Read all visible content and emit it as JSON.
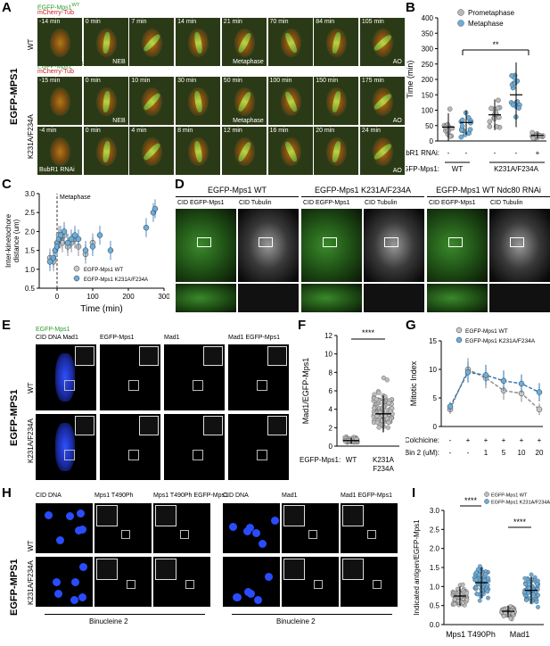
{
  "panels": {
    "A": {
      "label": "A",
      "side_label": "EGFP-MPS1",
      "wt": {
        "row_label": "WT",
        "legend_line1": "EGFP-Mps1",
        "legend_line1_sup": "WT",
        "legend_line2": "mCherry-Tub",
        "times": [
          "-14 min",
          "0 min",
          "7 min",
          "14 min",
          "21 min",
          "70 min",
          "84 min",
          "105 min"
        ],
        "tags": [
          "",
          "NEB",
          "",
          "",
          "Metaphase",
          "",
          "",
          "AO"
        ]
      },
      "mut": {
        "row_label": "K231A/F234A",
        "legend_line1": "EGFP-Mps1",
        "legend_line1_sup": "K231A/F234A",
        "legend_line2": "mCherry-Tub",
        "times": [
          "-15 min",
          "0 min",
          "10 min",
          "30 min",
          "50 min",
          "100 min",
          "150 min",
          "175 min"
        ],
        "tags": [
          "",
          "NEB",
          "",
          "",
          "Metaphase",
          "",
          "",
          "AO"
        ]
      },
      "rnai": {
        "times": [
          "-4 min",
          "0 min",
          "4 min",
          "8 min",
          "12 min",
          "16 min",
          "20 min",
          "24 min"
        ],
        "tags": [
          "",
          "",
          "",
          "",
          "",
          "",
          "",
          "AO"
        ],
        "row_note": "BubR1 RNAi"
      }
    },
    "B": {
      "label": "B",
      "ylabel": "Time (min)",
      "legend": [
        "Prometaphase",
        "Metaphase"
      ],
      "significance": "**",
      "row1_label": "BubR1 RNAi:",
      "row1_values": [
        "-",
        "-",
        "-",
        "-",
        "+"
      ],
      "row2_label": "EGFP-Mps1:",
      "row2_groups": [
        "WT",
        "K231A/F234A"
      ],
      "colors": {
        "prometaphase": "#b8b8b8",
        "metaphase": "#6aaedc"
      }
    },
    "C": {
      "label": "C",
      "ylabel_line1": "Inter-kinetochore",
      "ylabel_line2": "distance (um)",
      "xlabel": "Time (min)",
      "annotation": "Metaphase",
      "legend": [
        "EGFP-Mps1 WT",
        "EGFP-Mps1 K231A/F234A"
      ]
    },
    "D": {
      "label": "D",
      "headers": [
        "EGFP-Mps1 WT",
        "EGFP-Mps1 K231A/F234A",
        "EGFP-Mps1 WT Ndc80 RNAi"
      ],
      "sub1": "CID EGFP-Mps1",
      "sub2": "CID Tubulin"
    },
    "E": {
      "label": "E",
      "side_label": "EGFP-MPS1",
      "col_heads": [
        "CID DNA Mad1",
        "EGFP-Mps1",
        "Mad1",
        "Mad1 EGFP-Mps1"
      ],
      "head_top": "EGFP-Mps1",
      "rows": [
        "WT",
        "K231A/F234A"
      ]
    },
    "F": {
      "label": "F",
      "ylabel": "Mad1/EGFP-Mps1",
      "significance": "****",
      "x_prefix": "EGFP-Mps1:",
      "categories": [
        "WT",
        "K231A F234A"
      ]
    },
    "G": {
      "label": "G",
      "ylabel": "Mitotic Index",
      "legend": [
        "EGFP-Mps1 WT",
        "EGFP-Mps1 K231A/F234A"
      ],
      "row1_label": "Colchicine:",
      "row1_values": [
        "-",
        "+",
        "+",
        "+",
        "+",
        "+"
      ],
      "row2_label": "Bin 2 (uM):",
      "row2_values": [
        "-",
        "-",
        "1",
        "5",
        "10",
        "20"
      ]
    },
    "H": {
      "label": "H",
      "side_label": "EGFP-MPS1",
      "rows": [
        "WT",
        "K231A/F234A"
      ],
      "col_heads_left": [
        "CID DNA",
        "Mps1 T490Ph",
        "Mps1 T490Ph EGFP-Mps1"
      ],
      "col_heads_right": [
        "CID DNA",
        "Mad1",
        "Mad1 EGFP-Mps1"
      ],
      "bottom_labels": [
        "Binucleine 2",
        "Binucleine 2"
      ]
    },
    "I": {
      "label": "I",
      "ylabel": "Indicated antigen/EGFP-Mps1",
      "legend": [
        "EGFP-Mps1 WT",
        "EGFP-Mps1 K231A/F234A"
      ],
      "significance": [
        "****",
        "****"
      ],
      "categories": [
        "Mps1 T490Ph",
        "Mad1"
      ]
    }
  },
  "chart_data": [
    {
      "id": "B",
      "type": "scatter",
      "ylim": [
        0,
        400
      ],
      "yticks": [
        0,
        50,
        100,
        150,
        200,
        250,
        300,
        350,
        400
      ],
      "series": [
        {
          "name": "Prometaphase",
          "x": "WT",
          "mean": 45,
          "sd": 45
        },
        {
          "name": "Metaphase",
          "x": "WT",
          "mean": 60,
          "sd": 40
        },
        {
          "name": "Prometaphase",
          "x": "K231A/F234A",
          "mean": 85,
          "sd": 50
        },
        {
          "name": "Metaphase",
          "x": "K231A/F234A",
          "mean": 150,
          "sd": 105
        },
        {
          "name": "Prometaphase",
          "x": "BubR1 RNAi",
          "mean": 18,
          "sd": 10
        }
      ]
    },
    {
      "id": "C",
      "type": "scatter",
      "xlim": [
        -50,
        300
      ],
      "ylim": [
        0.5,
        3.0
      ],
      "xticks": [
        0,
        100,
        200,
        300
      ],
      "yticks": [
        0.5,
        1.0,
        1.5,
        2.0,
        2.5,
        3.0
      ],
      "series": [
        {
          "name": "EGFP-Mps1 WT",
          "x": [
            -20,
            -10,
            -5,
            0,
            5,
            10,
            15,
            20,
            30,
            40,
            50,
            60,
            80,
            100
          ],
          "y": [
            1.3,
            1.2,
            1.5,
            1.7,
            1.9,
            1.8,
            1.7,
            1.9,
            1.6,
            1.7,
            1.8,
            1.6,
            1.4,
            1.7
          ]
        },
        {
          "name": "EGFP-Mps1 K231A/F234A",
          "x": [
            -20,
            -10,
            -5,
            0,
            5,
            10,
            20,
            30,
            40,
            50,
            60,
            80,
            100,
            120,
            150,
            250,
            270,
            275
          ],
          "y": [
            1.2,
            1.3,
            1.5,
            1.6,
            1.8,
            1.9,
            2.0,
            1.7,
            1.8,
            1.9,
            1.8,
            1.5,
            1.6,
            1.9,
            1.5,
            2.1,
            2.5,
            2.6
          ]
        }
      ]
    },
    {
      "id": "F",
      "type": "scatter",
      "ylim": [
        0,
        12
      ],
      "yticks": [
        0,
        2,
        4,
        6,
        8,
        10,
        12
      ],
      "series": [
        {
          "name": "WT",
          "mean": 0.6,
          "sd": 0.3
        },
        {
          "name": "K231A F234A",
          "mean": 3.5,
          "sd": 2.0
        }
      ]
    },
    {
      "id": "G",
      "type": "line",
      "ylim": [
        0,
        15
      ],
      "yticks": [
        0,
        5,
        10,
        15
      ],
      "categories": [
        "-/-",
        "+/-",
        "+/1",
        "+/5",
        "+/10",
        "+/20"
      ],
      "series": [
        {
          "name": "EGFP-Mps1 WT",
          "values": [
            3.0,
            10.0,
            8.5,
            6.3,
            5.8,
            3.0
          ],
          "err": [
            0.8,
            2.0,
            1.8,
            1.6,
            1.5,
            1.0
          ]
        },
        {
          "name": "EGFP-Mps1 K231A/F234A",
          "values": [
            3.5,
            9.5,
            9.0,
            8.0,
            7.5,
            6.0
          ],
          "err": [
            0.8,
            1.8,
            1.8,
            1.8,
            1.6,
            1.6
          ]
        }
      ]
    },
    {
      "id": "I",
      "type": "scatter",
      "ylim": [
        0,
        3.0
      ],
      "yticks": [
        0,
        0.5,
        1.0,
        1.5,
        2.0,
        2.5,
        3.0
      ],
      "series": [
        {
          "name": "EGFP-Mps1 WT",
          "group": "Mps1 T490Ph",
          "mean": 0.75,
          "sd": 0.25
        },
        {
          "name": "EGFP-Mps1 K231A/F234A",
          "group": "Mps1 T490Ph",
          "mean": 1.1,
          "sd": 0.4
        },
        {
          "name": "EGFP-Mps1 WT",
          "group": "Mad1",
          "mean": 0.35,
          "sd": 0.15
        },
        {
          "name": "EGFP-Mps1 K231A/F234A",
          "group": "Mad1",
          "mean": 0.9,
          "sd": 0.35
        }
      ]
    }
  ]
}
